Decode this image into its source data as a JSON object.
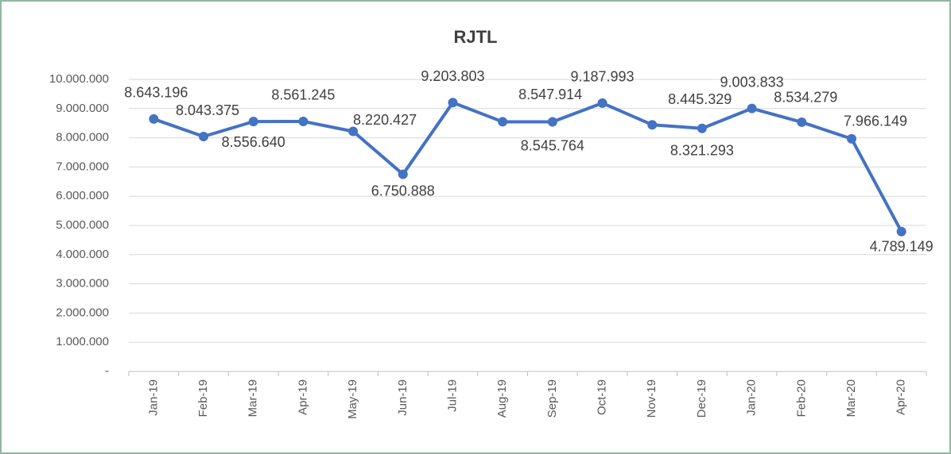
{
  "chart_data": {
    "type": "line",
    "title": "RJTL",
    "categories": [
      "Jan-19",
      "Feb-19",
      "Mar-19",
      "Apr-19",
      "May-19",
      "Jun-19",
      "Jul-19",
      "Aug-19",
      "Sep-19",
      "Oct-19",
      "Nov-19",
      "Dec-19",
      "Jan-20",
      "Feb-20",
      "Mar-20",
      "Apr-20"
    ],
    "series": [
      {
        "name": "RJTL",
        "color": "#4472c4",
        "values": [
          8643196,
          8043375,
          8556640,
          8561245,
          8220427,
          6750888,
          9203803,
          8547914,
          8545764,
          9187993,
          8445329,
          8321293,
          9003833,
          8534279,
          7966149,
          4789149
        ],
        "value_labels": [
          "8.643.196",
          "8.043.375",
          "8.556.640",
          "8.561.245",
          "8.220.427",
          "6.750.888",
          "9.203.803",
          "8.547.914",
          "8.545.764",
          "9.187.993",
          "8.445.329",
          "8.321.293",
          "9.003.833",
          "8.534.279",
          "7.966.149",
          "4.789.149"
        ]
      }
    ],
    "ylim": [
      0,
      10000000
    ],
    "yticks": [
      {
        "value": 0,
        "label": "-"
      },
      {
        "value": 1000000,
        "label": "1.000.000"
      },
      {
        "value": 2000000,
        "label": "2.000.000"
      },
      {
        "value": 3000000,
        "label": "3.000.000"
      },
      {
        "value": 4000000,
        "label": "4.000.000"
      },
      {
        "value": 5000000,
        "label": "5.000.000"
      },
      {
        "value": 6000000,
        "label": "6.000.000"
      },
      {
        "value": 7000000,
        "label": "7.000.000"
      },
      {
        "value": 8000000,
        "label": "8.000.000"
      },
      {
        "value": 9000000,
        "label": "9.000.000"
      },
      {
        "value": 10000000,
        "label": "10.000.000"
      }
    ],
    "grid": true
  }
}
